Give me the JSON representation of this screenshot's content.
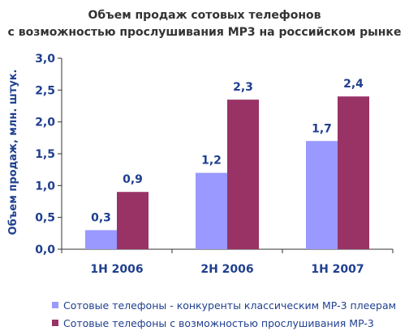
{
  "chart_data": {
    "type": "bar",
    "title": "Объем продаж сотовых телефонов",
    "subtitle": "с возможностью прослушивания MP3 на российском рынке",
    "xlabel": "",
    "ylabel": "Объем продаж, млн. штук.",
    "ylim": [
      0,
      3
    ],
    "yticks": [
      "0,0",
      "0,5",
      "1,0",
      "1,5",
      "2,0",
      "2,5",
      "3,0"
    ],
    "categories": [
      "1H 2006",
      "2H 2006",
      "1H 2007"
    ],
    "series": [
      {
        "name": "Сотовые телефоны - конкуренты классическим MP-3 плеерам",
        "color": "#9999ff",
        "values": [
          0.3,
          1.2,
          1.7
        ],
        "labels": [
          "0,3",
          "1,2",
          "1,7"
        ]
      },
      {
        "name": "Сотовые телефоны с возможностью прослушивания MP-3",
        "color": "#993366",
        "values": [
          0.9,
          2.35,
          2.4
        ],
        "labels": [
          "0,9",
          "2,3",
          "2,4"
        ]
      }
    ],
    "grid": false,
    "legend_position": "bottom"
  }
}
